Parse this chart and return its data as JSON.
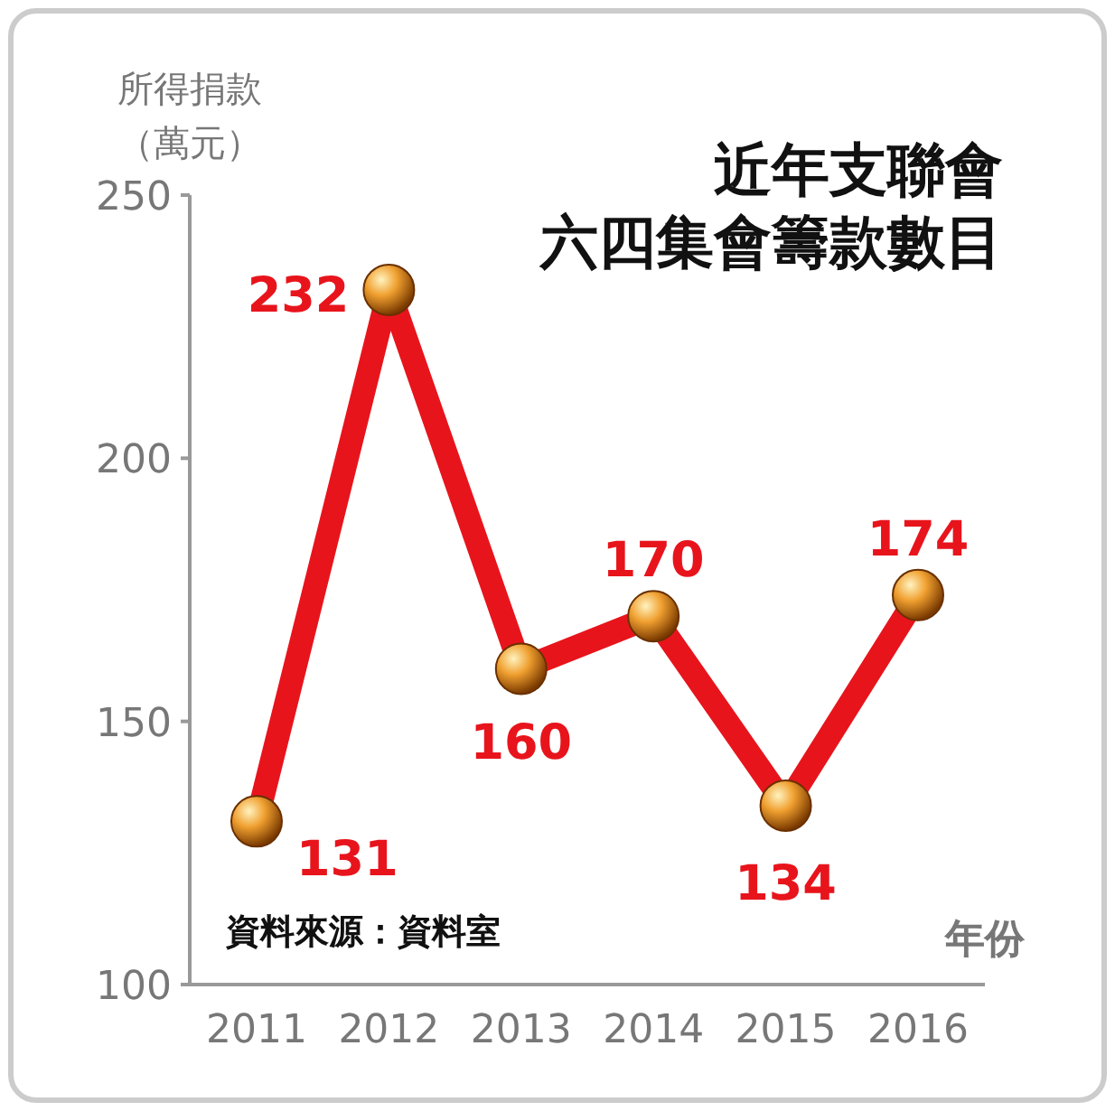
{
  "chart_data": {
    "type": "line",
    "title": "近年支聯會",
    "subtitle": "六四集會籌款數目",
    "ylabel": "所得捐款（萬元）",
    "xlabel": "年份",
    "categories": [
      "2011",
      "2012",
      "2013",
      "2014",
      "2015",
      "2016"
    ],
    "series": [
      {
        "color": "#e8141c",
        "values": [
          131,
          232,
          160,
          170,
          134,
          174
        ]
      }
    ],
    "ylim": [
      100,
      250
    ],
    "yticks": [
      100,
      150,
      200,
      250
    ],
    "data_labels": true,
    "marker": "circle",
    "line_style": "solid",
    "grid": false,
    "annotations": [
      "資料來源：資料室"
    ]
  }
}
